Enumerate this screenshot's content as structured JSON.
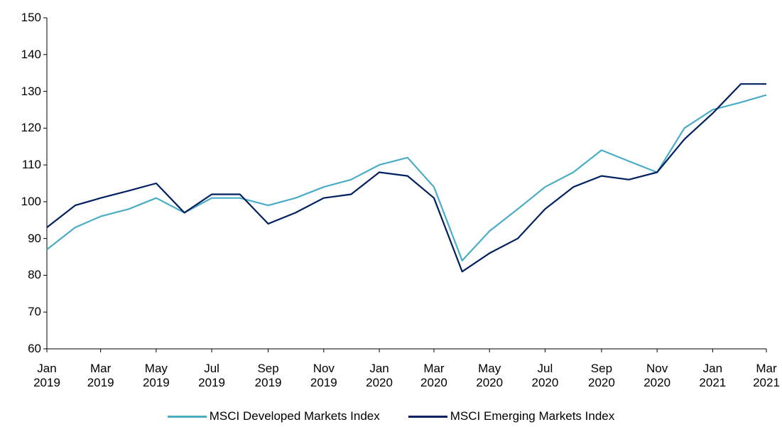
{
  "chart_data": {
    "type": "line",
    "x": [
      "2019-01",
      "2019-02",
      "2019-03",
      "2019-04",
      "2019-05",
      "2019-06",
      "2019-07",
      "2019-08",
      "2019-09",
      "2019-10",
      "2019-11",
      "2019-12",
      "2020-01",
      "2020-02",
      "2020-03",
      "2020-04",
      "2020-05",
      "2020-06",
      "2020-07",
      "2020-08",
      "2020-09",
      "2020-10",
      "2020-11",
      "2020-12",
      "2021-01",
      "2021-02",
      "2021-03"
    ],
    "series": [
      {
        "name": "MSCI Developed Markets Index",
        "color": "#4bacc6",
        "values": [
          87,
          93,
          96,
          98,
          101,
          97,
          101,
          101,
          99,
          101,
          104,
          106,
          110,
          112,
          104,
          84,
          92,
          98,
          104,
          108,
          114,
          111,
          108,
          120,
          125,
          127,
          129
        ]
      },
      {
        "name": "MSCI Emerging Markets Index",
        "color": "#002060",
        "values": [
          93,
          99,
          101,
          103,
          105,
          97,
          102,
          102,
          94,
          97,
          101,
          102,
          108,
          107,
          101,
          81,
          86,
          90,
          98,
          104,
          107,
          106,
          108,
          117,
          124,
          132,
          132
        ]
      }
    ],
    "xlim": [
      "2019-01",
      "2021-03"
    ],
    "xticks": [
      {
        "value": "2019-01",
        "label": "Jan 2019"
      },
      {
        "value": "2019-03",
        "label": "Mar 2019"
      },
      {
        "value": "2019-05",
        "label": "May 2019"
      },
      {
        "value": "2019-07",
        "label": "Jul 2019"
      },
      {
        "value": "2019-09",
        "label": "Sep 2019"
      },
      {
        "value": "2019-11",
        "label": "Nov 2019"
      },
      {
        "value": "2020-01",
        "label": "Jan 2020"
      },
      {
        "value": "2020-03",
        "label": "Mar 2020"
      },
      {
        "value": "2020-05",
        "label": "May 2020"
      },
      {
        "value": "2020-07",
        "label": "Jul 2020"
      },
      {
        "value": "2020-09",
        "label": "Sep 2020"
      },
      {
        "value": "2020-11",
        "label": "Nov 2020"
      },
      {
        "value": "2021-01",
        "label": "Jan 2021"
      },
      {
        "value": "2021-03",
        "label": "Mar 2021"
      }
    ],
    "ylim": [
      60,
      150
    ],
    "yticks": [
      60,
      70,
      80,
      90,
      100,
      110,
      120,
      130,
      140,
      150
    ],
    "legend": "bottom"
  }
}
